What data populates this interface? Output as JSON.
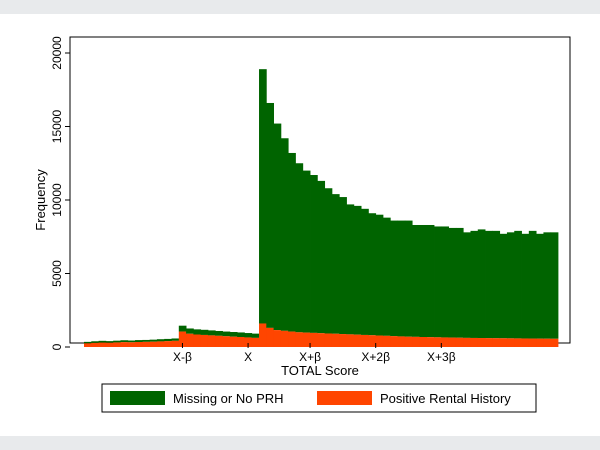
{
  "chart_data": {
    "type": "bar",
    "stacked": true,
    "xlabel": "TOTAL Score",
    "ylabel": "Frequency",
    "ylim": [
      0,
      20000
    ],
    "yticks": [
      0,
      5000,
      10000,
      15000,
      20000
    ],
    "xtick_labels": [
      {
        "label": "X-β",
        "bin": 13.5
      },
      {
        "label": "X",
        "bin": 22.5
      },
      {
        "label": "X+β",
        "bin": 31
      },
      {
        "label": "X+2β",
        "bin": 40
      },
      {
        "label": "X+3β",
        "bin": 49
      }
    ],
    "grid": false,
    "legend_position": "bottom",
    "series": [
      {
        "name": "Positive Rental History",
        "color": "#ff4500",
        "values": [
          250,
          280,
          300,
          290,
          310,
          330,
          320,
          340,
          350,
          360,
          380,
          400,
          420,
          1050,
          900,
          850,
          820,
          790,
          760,
          730,
          700,
          680,
          650,
          620,
          1600,
          1300,
          1150,
          1100,
          1050,
          1000,
          980,
          960,
          940,
          920,
          900,
          880,
          860,
          840,
          820,
          800,
          780,
          760,
          740,
          720,
          700,
          690,
          680,
          670,
          660,
          650,
          640,
          630,
          620,
          615,
          610,
          605,
          600,
          595,
          590,
          585,
          580,
          575,
          570,
          565,
          560
        ]
      },
      {
        "name": "Missing or No PRH",
        "color": "#006400",
        "values": [
          100,
          110,
          120,
          110,
          120,
          130,
          120,
          130,
          130,
          140,
          150,
          150,
          160,
          400,
          360,
          350,
          350,
          340,
          330,
          320,
          320,
          310,
          300,
          290,
          17300,
          15300,
          14050,
          13100,
          12150,
          11500,
          11020,
          10740,
          10360,
          9880,
          9500,
          9320,
          8840,
          8760,
          8580,
          8300,
          8220,
          8040,
          7860,
          7880,
          7900,
          7610,
          7620,
          7630,
          7540,
          7550,
          7460,
          7470,
          7180,
          7285,
          7390,
          7295,
          7300,
          7105,
          7210,
          7315,
          7120,
          7325,
          7130,
          7235,
          7240
        ]
      }
    ]
  }
}
